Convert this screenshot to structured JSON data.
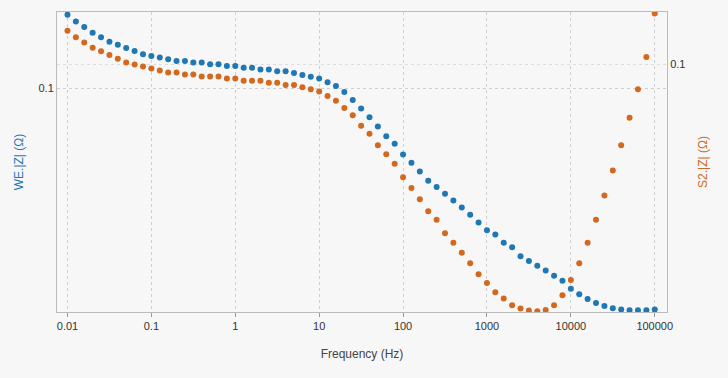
{
  "chart_data": {
    "type": "scatter",
    "x_label": "Frequency (Hz)",
    "y_label": "WE.|Z| (Ω)",
    "y2_label": "S2.|Z| (Ω)",
    "log": true,
    "grid": true,
    "marker": "circle",
    "x": [
      0.01,
      0.01259,
      0.01585,
      0.01995,
      0.02512,
      0.03162,
      0.03981,
      0.05012,
      0.0631,
      0.07943,
      0.1,
      0.1259,
      0.1585,
      0.1995,
      0.2512,
      0.3162,
      0.3981,
      0.5012,
      0.631,
      0.7943,
      1,
      1.259,
      1.585,
      1.995,
      2.512,
      3.162,
      3.981,
      5.012,
      6.31,
      7.943,
      10,
      12.59,
      15.85,
      19.95,
      25.12,
      31.62,
      39.81,
      50.12,
      63.1,
      79.43,
      100,
      125.9,
      158.5,
      199.5,
      251.2,
      316.2,
      398.1,
      501.2,
      631,
      794.3,
      1000,
      1259,
      1585,
      1995,
      2512,
      3162,
      3981,
      5012,
      6310,
      7943,
      10000,
      12590,
      15850,
      19950,
      25120,
      31620,
      39810,
      50120,
      63100,
      79430,
      100000
    ],
    "series": [
      {
        "name": "WE.|Z| (Ω)",
        "color": "#1f77b4",
        "values": [
          0.146,
          0.141,
          0.137,
          0.133,
          0.13,
          0.127,
          0.125,
          0.123,
          0.121,
          0.119,
          0.118,
          0.117,
          0.116,
          0.115,
          0.115,
          0.114,
          0.114,
          0.113,
          0.113,
          0.112,
          0.112,
          0.111,
          0.111,
          0.11,
          0.11,
          0.109,
          0.109,
          0.108,
          0.107,
          0.106,
          0.105,
          0.103,
          0.101,
          0.098,
          0.094,
          0.09,
          0.086,
          0.082,
          0.078,
          0.075,
          0.071,
          0.068,
          0.065,
          0.062,
          0.06,
          0.058,
          0.056,
          0.054,
          0.052,
          0.05,
          0.048,
          0.047,
          0.045,
          0.044,
          0.042,
          0.041,
          0.04,
          0.039,
          0.038,
          0.037,
          0.0355,
          0.0345,
          0.0337,
          0.033,
          0.0325,
          0.0321,
          0.0319,
          0.0318,
          0.0318,
          0.0318,
          0.0319
        ]
      },
      {
        "name": "S2.|Z| (Ω)",
        "color": "#d2691e",
        "axis": "y2",
        "values": [
          0.119,
          0.115,
          0.112,
          0.109,
          0.107,
          0.105,
          0.103,
          0.101,
          0.1,
          0.099,
          0.098,
          0.097,
          0.096,
          0.096,
          0.095,
          0.095,
          0.094,
          0.094,
          0.094,
          0.093,
          0.093,
          0.092,
          0.092,
          0.092,
          0.091,
          0.091,
          0.09,
          0.09,
          0.089,
          0.088,
          0.087,
          0.085,
          0.083,
          0.08,
          0.077,
          0.073,
          0.07,
          0.066,
          0.063,
          0.06,
          0.056,
          0.053,
          0.05,
          0.047,
          0.045,
          0.042,
          0.04,
          0.038,
          0.036,
          0.034,
          0.0325,
          0.031,
          0.03,
          0.029,
          0.0285,
          0.0282,
          0.0281,
          0.0283,
          0.029,
          0.0305,
          0.033,
          0.036,
          0.04,
          0.045,
          0.051,
          0.058,
          0.066,
          0.076,
          0.088,
          0.104,
          0.13
        ]
      }
    ],
    "xlim": [
      0.0075,
      140000
    ],
    "xticks": [
      0.01,
      0.1,
      1,
      10,
      100,
      1000,
      10000,
      100000
    ],
    "ylim": [
      0.0315,
      0.148
    ],
    "yticks": [
      0.1
    ],
    "y2lim": [
      0.028,
      0.131
    ],
    "y2ticks": [
      0.1
    ]
  }
}
